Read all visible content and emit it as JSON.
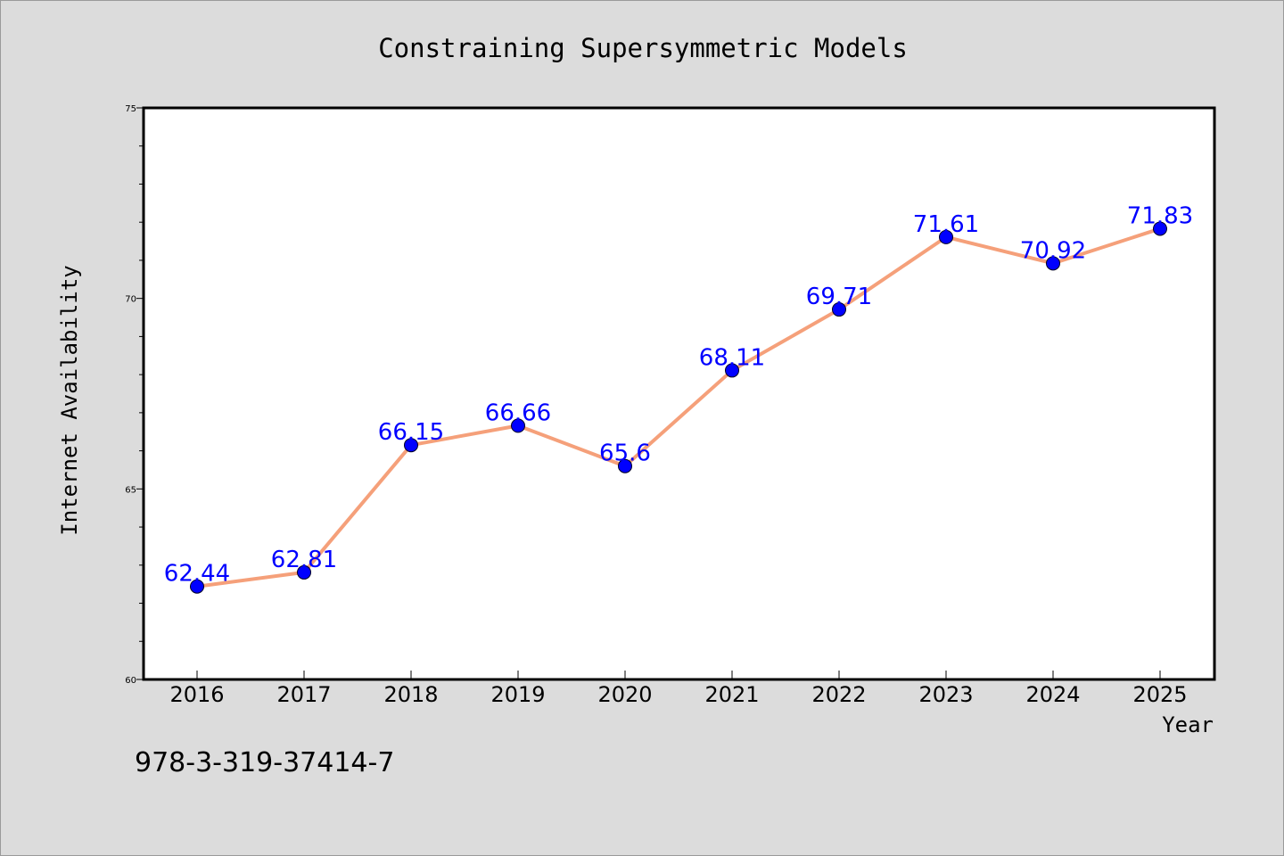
{
  "chart_data": {
    "type": "line",
    "title": "Constraining Supersymmetric Models",
    "xlabel": "Year",
    "ylabel": "Internet Availability",
    "categories": [
      "2016",
      "2017",
      "2018",
      "2019",
      "2020",
      "2021",
      "2022",
      "2023",
      "2024",
      "2025"
    ],
    "series": [
      {
        "values": [
          62.44,
          62.81,
          66.15,
          66.66,
          65.6,
          68.11,
          69.71,
          71.61,
          70.92,
          71.83
        ],
        "data_labels": [
          "62.44",
          "62.81",
          "66.15",
          "66.66",
          "65.6",
          "68.11",
          "69.71",
          "71.61",
          "70.92",
          "71.83"
        ],
        "line_color": "#f5a07a",
        "marker_color": "#0000ff"
      }
    ],
    "ylim": [
      60,
      75
    ],
    "yticks": [
      "60",
      "65",
      "70",
      "75"
    ],
    "grid": false,
    "label_color": "#0000ff"
  },
  "footer_text": "978-3-319-37414-7",
  "colors": {
    "background": "#dcdcdc",
    "plot_area": "#ffffff",
    "axis": "#000000"
  }
}
